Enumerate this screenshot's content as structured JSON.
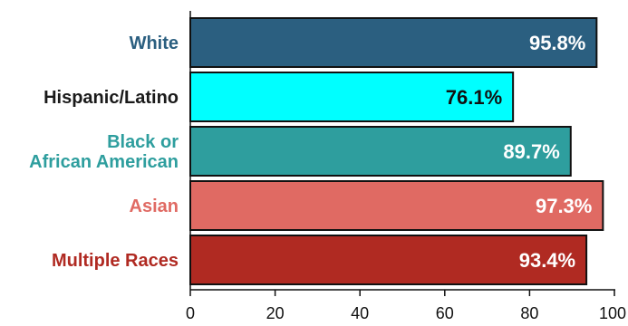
{
  "chart_data": {
    "type": "bar",
    "orientation": "horizontal",
    "title": "",
    "xlabel": "",
    "ylabel": "",
    "xlim": [
      0,
      100
    ],
    "xticks": [
      0,
      20,
      40,
      60,
      80,
      100
    ],
    "tick_labels": [
      "0",
      "20",
      "40",
      "60",
      "80",
      "100"
    ],
    "grid": false,
    "legend": "none",
    "categories": [
      "White",
      "Hispanic/Latino",
      "Black or African American",
      "Asian",
      "Multiple Races"
    ],
    "category_lines": [
      [
        "White"
      ],
      [
        "Hispanic/Latino"
      ],
      [
        "Black or",
        "African American"
      ],
      [
        "Asian"
      ],
      [
        "Multiple Races"
      ]
    ],
    "values": [
      95.8,
      76.1,
      89.7,
      97.3,
      93.4
    ],
    "data_labels": [
      "95.8%",
      "76.1%",
      "89.7%",
      "97.3%",
      "93.4%"
    ],
    "bar_colors": [
      "#2b5f80",
      "#00ffff",
      "#2e9e9e",
      "#e06a63",
      "#b02a22"
    ],
    "category_label_colors": [
      "#2b5f80",
      "#1a1a1a",
      "#2e9e9e",
      "#e06a63",
      "#b02a22"
    ],
    "data_label_colors": [
      "#ffffff",
      "#111111",
      "#ffffff",
      "#ffffff",
      "#ffffff"
    ]
  }
}
